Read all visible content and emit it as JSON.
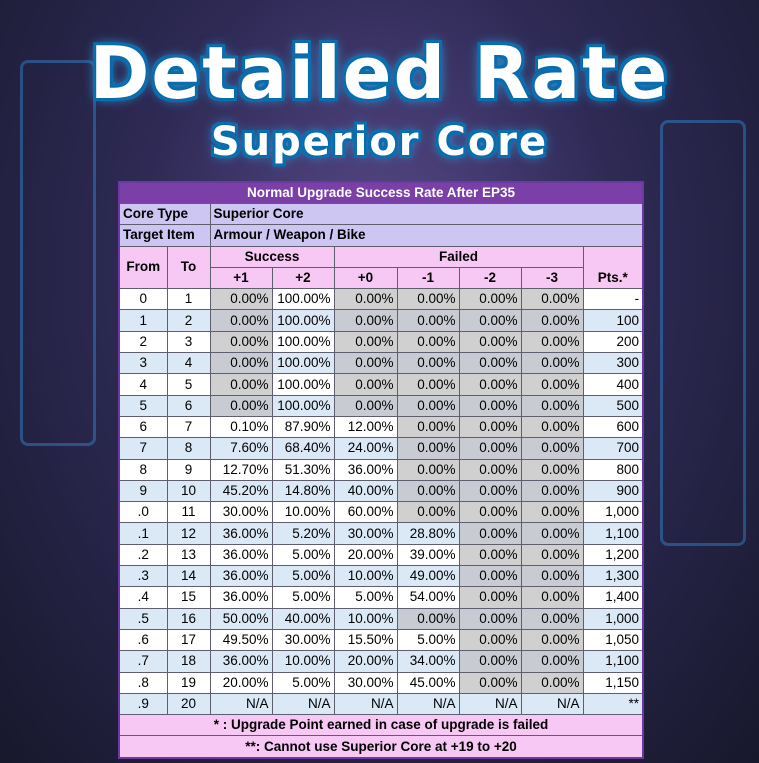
{
  "header": {
    "title": "Detailed Rate",
    "subtitle": "Superior Core"
  },
  "table": {
    "caption": "Normal Upgrade Success Rate After EP35",
    "core_type_label": "Core Type",
    "core_type_value": "Superior Core",
    "target_item_label": "Target Item",
    "target_item_value": "Armour / Weapon / Bike",
    "headers": {
      "from": "From",
      "to": "To",
      "success": "Success",
      "failed": "Failed",
      "pts": "Pts.*",
      "sub": [
        "+1",
        "+2",
        "+0",
        "-1",
        "-2",
        "-3"
      ]
    },
    "rows": [
      [
        "0",
        "1",
        "0.00%",
        "100.00%",
        "0.00%",
        "0.00%",
        "0.00%",
        "0.00%",
        "-"
      ],
      [
        "1",
        "2",
        "0.00%",
        "100.00%",
        "0.00%",
        "0.00%",
        "0.00%",
        "0.00%",
        "100"
      ],
      [
        "2",
        "3",
        "0.00%",
        "100.00%",
        "0.00%",
        "0.00%",
        "0.00%",
        "0.00%",
        "200"
      ],
      [
        "3",
        "4",
        "0.00%",
        "100.00%",
        "0.00%",
        "0.00%",
        "0.00%",
        "0.00%",
        "300"
      ],
      [
        "4",
        "5",
        "0.00%",
        "100.00%",
        "0.00%",
        "0.00%",
        "0.00%",
        "0.00%",
        "400"
      ],
      [
        "5",
        "6",
        "0.00%",
        "100.00%",
        "0.00%",
        "0.00%",
        "0.00%",
        "0.00%",
        "500"
      ],
      [
        "6",
        "7",
        "0.10%",
        "87.90%",
        "12.00%",
        "0.00%",
        "0.00%",
        "0.00%",
        "600"
      ],
      [
        "7",
        "8",
        "7.60%",
        "68.40%",
        "24.00%",
        "0.00%",
        "0.00%",
        "0.00%",
        "700"
      ],
      [
        "8",
        "9",
        "12.70%",
        "51.30%",
        "36.00%",
        "0.00%",
        "0.00%",
        "0.00%",
        "800"
      ],
      [
        "9",
        "10",
        "45.20%",
        "14.80%",
        "40.00%",
        "0.00%",
        "0.00%",
        "0.00%",
        "900"
      ],
      [
        ".0",
        "11",
        "30.00%",
        "10.00%",
        "60.00%",
        "0.00%",
        "0.00%",
        "0.00%",
        "1,000"
      ],
      [
        ".1",
        "12",
        "36.00%",
        "5.20%",
        "30.00%",
        "28.80%",
        "0.00%",
        "0.00%",
        "1,100"
      ],
      [
        ".2",
        "13",
        "36.00%",
        "5.00%",
        "20.00%",
        "39.00%",
        "0.00%",
        "0.00%",
        "1,200"
      ],
      [
        ".3",
        "14",
        "36.00%",
        "5.00%",
        "10.00%",
        "49.00%",
        "0.00%",
        "0.00%",
        "1,300"
      ],
      [
        ".4",
        "15",
        "36.00%",
        "5.00%",
        "5.00%",
        "54.00%",
        "0.00%",
        "0.00%",
        "1,400"
      ],
      [
        ".5",
        "16",
        "50.00%",
        "40.00%",
        "10.00%",
        "0.00%",
        "0.00%",
        "0.00%",
        "1,000"
      ],
      [
        ".6",
        "17",
        "49.50%",
        "30.00%",
        "15.50%",
        "5.00%",
        "0.00%",
        "0.00%",
        "1,050"
      ],
      [
        ".7",
        "18",
        "36.00%",
        "10.00%",
        "20.00%",
        "34.00%",
        "0.00%",
        "0.00%",
        "1,100"
      ],
      [
        ".8",
        "19",
        "20.00%",
        "5.00%",
        "30.00%",
        "45.00%",
        "0.00%",
        "0.00%",
        "1,150"
      ],
      [
        ".9",
        "20",
        "N/A",
        "N/A",
        "N/A",
        "N/A",
        "N/A",
        "N/A",
        "**"
      ]
    ],
    "footnotes": [
      "* : Upgrade Point earned in case of upgrade is failed",
      "**: Cannot use Superior Core at +19 to +20"
    ]
  },
  "colors": {
    "caption": "#7b3fa8",
    "info": "#cdc6f2",
    "header": "#f8c8f4",
    "alt_row": "#dbe8f6",
    "zero_cell": "#d0d0d0",
    "title_outline": "#0a6fb0"
  }
}
